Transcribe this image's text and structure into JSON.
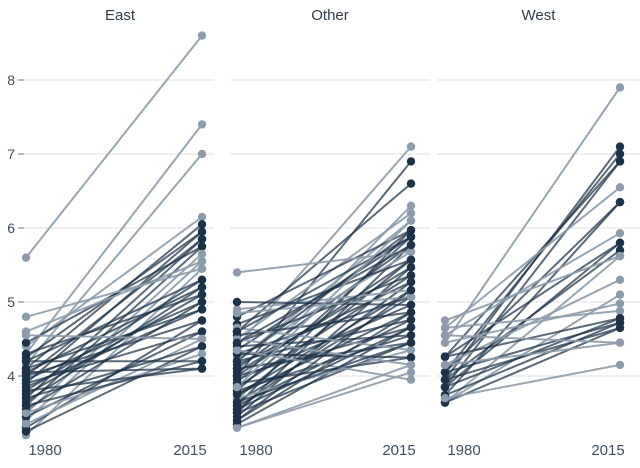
{
  "chart_data": {
    "type": "line",
    "subtype": "slopegraph-small-multiples",
    "x_categories": [
      "1980",
      "2015"
    ],
    "y_ticks": [
      4,
      5,
      6,
      7,
      8
    ],
    "ylim": [
      3.0,
      8.8
    ],
    "grid": true,
    "legend": "none",
    "panels": [
      {
        "title": "East",
        "lines": [
          [
            5.6,
            8.6,
            "light"
          ],
          [
            4.3,
            7.4,
            "light"
          ],
          [
            4.15,
            7.0,
            "light"
          ],
          [
            4.4,
            6.15,
            "light"
          ],
          [
            4.1,
            6.05,
            "dark"
          ],
          [
            3.9,
            5.95,
            "dark"
          ],
          [
            4.25,
            5.95,
            "dark"
          ],
          [
            3.7,
            5.85,
            "dark"
          ],
          [
            4.0,
            5.85,
            "dark"
          ],
          [
            3.6,
            5.75,
            "dark"
          ],
          [
            4.45,
            5.75,
            "dark"
          ],
          [
            3.5,
            5.65,
            "light"
          ],
          [
            4.6,
            5.55,
            "light"
          ],
          [
            3.4,
            5.55,
            "light"
          ],
          [
            4.8,
            5.45,
            "light"
          ],
          [
            3.2,
            5.45,
            "light"
          ],
          [
            4.2,
            5.3,
            "dark"
          ],
          [
            3.8,
            5.3,
            "dark"
          ],
          [
            4.05,
            5.2,
            "dark"
          ],
          [
            3.65,
            5.2,
            "dark"
          ],
          [
            4.3,
            5.1,
            "dark"
          ],
          [
            3.75,
            5.1,
            "dark"
          ],
          [
            3.95,
            5.0,
            "dark"
          ],
          [
            3.55,
            5.0,
            "dark"
          ],
          [
            4.1,
            4.9,
            "dark"
          ],
          [
            3.85,
            4.9,
            "dark"
          ],
          [
            3.3,
            4.75,
            "dark"
          ],
          [
            4.0,
            4.75,
            "dark"
          ],
          [
            3.9,
            4.6,
            "dark"
          ],
          [
            3.45,
            4.6,
            "dark"
          ],
          [
            3.35,
            4.5,
            "light"
          ],
          [
            4.55,
            4.5,
            "light"
          ],
          [
            3.25,
            4.4,
            "dark"
          ],
          [
            3.7,
            4.4,
            "dark"
          ],
          [
            3.5,
            4.3,
            "light"
          ],
          [
            3.6,
            4.2,
            "dark"
          ],
          [
            4.2,
            4.2,
            "dark"
          ],
          [
            4.05,
            4.1,
            "dark"
          ],
          [
            3.8,
            4.1,
            "dark"
          ]
        ]
      },
      {
        "title": "Other",
        "lines": [
          [
            4.4,
            7.1,
            "light"
          ],
          [
            4.0,
            6.9,
            "dark"
          ],
          [
            4.6,
            6.6,
            "dark"
          ],
          [
            3.9,
            6.3,
            "light"
          ],
          [
            4.5,
            6.2,
            "light"
          ],
          [
            4.2,
            6.1,
            "light"
          ],
          [
            3.6,
            5.97,
            "dark"
          ],
          [
            4.8,
            5.97,
            "dark"
          ],
          [
            4.35,
            5.88,
            "dark"
          ],
          [
            3.8,
            5.88,
            "dark"
          ],
          [
            4.1,
            5.77,
            "dark"
          ],
          [
            3.5,
            5.77,
            "dark"
          ],
          [
            5.4,
            5.68,
            "light"
          ],
          [
            4.25,
            5.68,
            "light"
          ],
          [
            4.7,
            5.57,
            "dark"
          ],
          [
            3.7,
            5.57,
            "dark"
          ],
          [
            4.05,
            5.47,
            "dark"
          ],
          [
            3.45,
            5.47,
            "dark"
          ],
          [
            4.45,
            5.36,
            "dark"
          ],
          [
            3.85,
            5.36,
            "dark"
          ],
          [
            4.15,
            5.27,
            "dark"
          ],
          [
            3.55,
            5.27,
            "dark"
          ],
          [
            4.9,
            5.16,
            "light"
          ],
          [
            3.75,
            5.16,
            "dark"
          ],
          [
            4.3,
            5.07,
            "dark"
          ],
          [
            3.65,
            5.07,
            "dark"
          ],
          [
            5.0,
            4.96,
            "dark"
          ],
          [
            3.95,
            4.96,
            "dark"
          ],
          [
            4.55,
            4.86,
            "dark"
          ],
          [
            3.4,
            4.86,
            "dark"
          ],
          [
            4.2,
            4.76,
            "dark"
          ],
          [
            3.6,
            4.76,
            "dark"
          ],
          [
            4.0,
            4.66,
            "dark"
          ],
          [
            3.35,
            4.66,
            "dark"
          ],
          [
            4.4,
            4.55,
            "dark"
          ],
          [
            3.8,
            4.55,
            "dark"
          ],
          [
            4.1,
            4.45,
            "dark"
          ],
          [
            3.5,
            4.45,
            "dark"
          ],
          [
            4.65,
            4.35,
            "light"
          ],
          [
            3.7,
            4.35,
            "light"
          ],
          [
            4.3,
            4.25,
            "dark"
          ],
          [
            3.9,
            4.25,
            "dark"
          ],
          [
            4.5,
            4.15,
            "light"
          ],
          [
            3.3,
            4.15,
            "light"
          ],
          [
            4.35,
            3.95,
            "light"
          ],
          [
            3.3,
            4.05,
            "light"
          ],
          [
            4.85,
            5.07,
            "light"
          ],
          [
            4.6,
            5.88,
            "dark"
          ],
          [
            3.4,
            5.16,
            "dark"
          ],
          [
            4.0,
            5.57,
            "dark"
          ],
          [
            3.75,
            4.86,
            "dark"
          ],
          [
            4.2,
            5.97,
            "dark"
          ],
          [
            3.55,
            4.66,
            "dark"
          ],
          [
            4.45,
            5.77,
            "dark"
          ],
          [
            3.85,
            6.1,
            "light"
          ],
          [
            3.65,
            4.45,
            "dark"
          ]
        ]
      },
      {
        "title": "West",
        "lines": [
          [
            4.45,
            7.9,
            "light"
          ],
          [
            3.95,
            7.1,
            "dark"
          ],
          [
            4.05,
            7.0,
            "dark"
          ],
          [
            3.85,
            6.9,
            "dark"
          ],
          [
            4.26,
            6.9,
            "dark"
          ],
          [
            4.65,
            6.55,
            "light"
          ],
          [
            3.74,
            6.35,
            "dark"
          ],
          [
            4.05,
            6.35,
            "dark"
          ],
          [
            4.55,
            5.93,
            "light"
          ],
          [
            3.85,
            5.8,
            "dark"
          ],
          [
            4.26,
            5.8,
            "dark"
          ],
          [
            3.95,
            5.7,
            "dark"
          ],
          [
            3.64,
            5.62,
            "light"
          ],
          [
            4.75,
            5.62,
            "light"
          ],
          [
            4.15,
            5.3,
            "light"
          ],
          [
            3.64,
            5.1,
            "light"
          ],
          [
            4.45,
            4.98,
            "light"
          ],
          [
            4.65,
            4.88,
            "light"
          ],
          [
            4.26,
            4.78,
            "dark"
          ],
          [
            3.85,
            4.78,
            "dark"
          ],
          [
            4.05,
            4.72,
            "dark"
          ],
          [
            3.74,
            4.72,
            "dark"
          ],
          [
            3.95,
            4.65,
            "dark"
          ],
          [
            3.64,
            4.65,
            "dark"
          ],
          [
            4.55,
            4.45,
            "light"
          ],
          [
            4.15,
            4.45,
            "light"
          ],
          [
            3.7,
            4.15,
            "light"
          ]
        ]
      }
    ]
  },
  "colors": {
    "dark": "#1d3247",
    "light": "#8d9cab",
    "grid": "#dce2e8",
    "tick_mark": "#8a95a2",
    "axis_text": "#41505f",
    "title_text": "#2f3d4d",
    "background": "#ffffff"
  }
}
